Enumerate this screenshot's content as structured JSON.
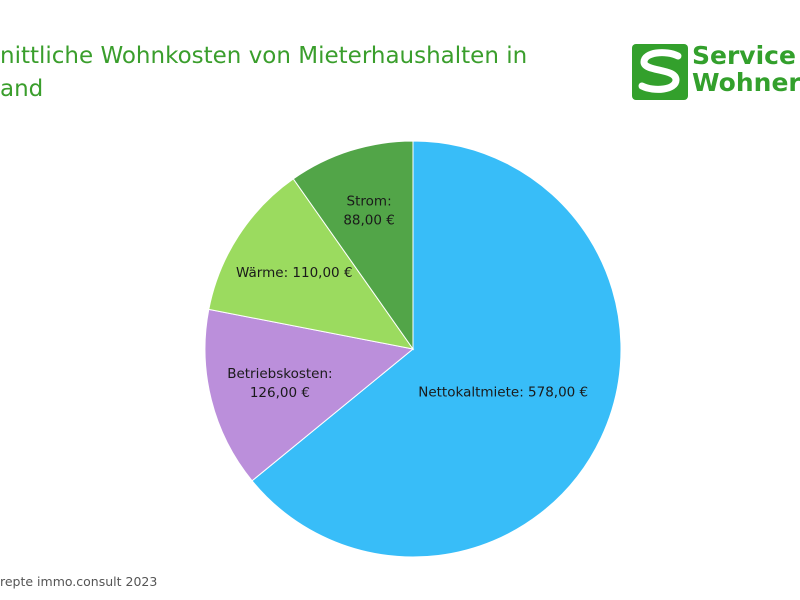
{
  "slide": {
    "title": "nittliche Wohnkosten von Mieterhaushalten in\nand",
    "source": "repte immo.consult 2023",
    "logo": {
      "line1": "Service",
      "line2": "Wohner",
      "color": "#33a02c"
    }
  },
  "chart_data": {
    "type": "pie",
    "title": "",
    "start": "12 o'clock",
    "direction": "clockwise",
    "slices": [
      {
        "label": "Nettokaltmiete: 578,00 €",
        "value": 578,
        "color": "#38bdf8"
      },
      {
        "label": "Betriebskosten:\n126,00 €",
        "value": 126,
        "color": "#bb8fdb"
      },
      {
        "label": "Wärme: 110,00 €",
        "value": 110,
        "color": "#9bdb5f"
      },
      {
        "label": "Strom:\n88,00 €",
        "value": 88,
        "color": "#52a548"
      }
    ]
  }
}
